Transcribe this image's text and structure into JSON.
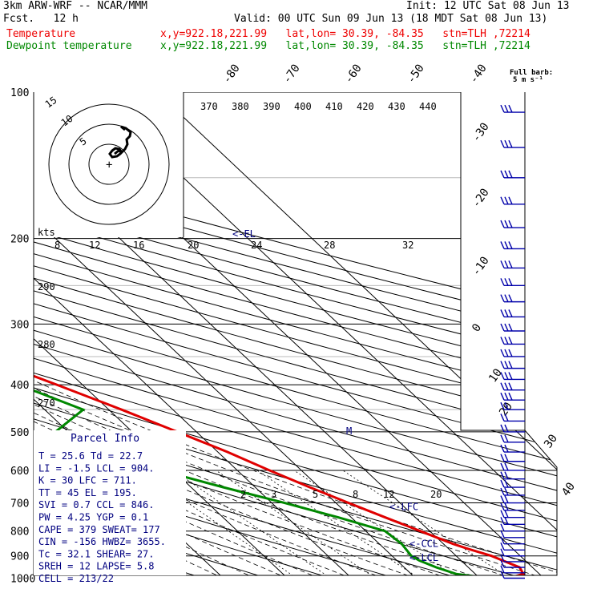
{
  "header": {
    "model": "3km ARW-WRF -- NCAR/MMM",
    "init": "Init: 12 UTC Sat 08 Jun 13",
    "fcst": "Fcst.   12 h",
    "valid": "Valid: 00 UTC Sun 09 Jun 13 (18 MDT Sat 08 Jun 13)",
    "temp_label": "Temperature",
    "temp_info": "x,y=922.18,221.99   lat,lon= 30.39, -84.35   stn=TLH ,72214",
    "dew_label": "Dewpoint temperature",
    "dew_info": "x,y=922.18,221.99   lat,lon= 30.39, -84.35   stn=TLH ,72214"
  },
  "colors": {
    "temperature": "#e00000",
    "dewpoint": "#008800",
    "wind": "#0000aa",
    "labels": "#000080"
  },
  "chart_data": {
    "type": "skew-t",
    "pressure_levels": [
      "100",
      "200",
      "300",
      "400",
      "500",
      "600",
      "700",
      "800",
      "900",
      "1000"
    ],
    "isotherm_labels": [
      "-80",
      "-70",
      "-60",
      "-50",
      "-40",
      "-30",
      "-20",
      "-10",
      "0",
      "10",
      "20",
      "30",
      "40"
    ],
    "theta_labels": [
      "370",
      "380",
      "390",
      "400",
      "410",
      "420",
      "430",
      "440"
    ],
    "dry_adiabat_labels": [
      "290",
      "280",
      "270"
    ],
    "mixing_ratio_labels": [
      "2",
      "3",
      "5",
      "8",
      "12",
      "20"
    ],
    "hodograph_speed_labels": [
      "8",
      "12",
      "16",
      "20",
      "24",
      "28",
      "32"
    ],
    "hodograph_unit": "kts",
    "hodograph_ring_labels": [
      "15",
      "10",
      "5"
    ],
    "wind_legend": "Full barb: 5 m s⁻¹",
    "levels": {
      "el": {
        "label": "<-EL",
        "p": 195
      },
      "lfc": {
        "label": "<-LFC",
        "p": 711
      },
      "ccl": {
        "label": "<-CCL",
        "p": 846
      },
      "lcl": {
        "label": "<-LCL",
        "p": 904
      }
    },
    "temperature": [
      [
        1000,
        24.5
      ],
      [
        980,
        27.5
      ],
      [
        950,
        28.0
      ],
      [
        920,
        26.5
      ],
      [
        900,
        25.5
      ],
      [
        870,
        23.0
      ],
      [
        850,
        21.5
      ],
      [
        800,
        18.5
      ],
      [
        750,
        15.3
      ],
      [
        700,
        12.0
      ],
      [
        650,
        8.5
      ],
      [
        600,
        5.0
      ],
      [
        550,
        1.5
      ],
      [
        500,
        -3.0
      ],
      [
        450,
        -8.0
      ],
      [
        400,
        -14.0
      ],
      [
        350,
        -21.0
      ],
      [
        300,
        -30.0
      ],
      [
        250,
        -40.5
      ],
      [
        200,
        -52.5
      ],
      [
        180,
        -56.5
      ],
      [
        160,
        -58.0
      ],
      [
        140,
        -59.0
      ],
      [
        120,
        -59.5
      ],
      [
        100,
        -60.0
      ]
    ],
    "dewpoint": [
      [
        1000,
        21.5
      ],
      [
        980,
        17.0
      ],
      [
        950,
        15.0
      ],
      [
        920,
        13.5
      ],
      [
        900,
        13.0
      ],
      [
        850,
        13.5
      ],
      [
        800,
        13.0
      ],
      [
        750,
        8.0
      ],
      [
        700,
        2.0
      ],
      [
        650,
        -5.0
      ],
      [
        600,
        -12.0
      ],
      [
        550,
        -18.0
      ],
      [
        500,
        -22.0
      ],
      [
        450,
        -14.0
      ],
      [
        400,
        -20.0
      ],
      [
        370,
        -20.0
      ],
      [
        350,
        -24.0
      ],
      [
        300,
        -34.0
      ],
      [
        250,
        -45.0
      ],
      [
        200,
        -54.0
      ],
      [
        180,
        -57.5
      ],
      [
        160,
        -64.0
      ],
      [
        140,
        -78.0
      ],
      [
        120,
        -82.0
      ],
      [
        100,
        -84.0
      ]
    ],
    "wind_pressures": [
      110,
      130,
      150,
      170,
      190,
      210,
      230,
      250,
      270,
      290,
      310,
      330,
      350,
      370,
      390,
      410,
      430,
      450,
      475,
      500,
      525,
      550,
      575,
      600,
      625,
      650,
      675,
      700,
      725,
      750,
      775,
      800,
      825,
      850,
      875,
      900,
      925,
      950,
      975,
      1000
    ],
    "parcel_info": {
      "title": "Parcel Info",
      "rows": [
        "T  =    25.6  Td =  22.7",
        "LI =    -1.5  LCL =  904.",
        "K  =     30   LFC =  711.",
        "TT =     45   EL  =  195.",
        "SVI =    0.7  CCL =  846.",
        "PW =    4.25  YGP =   0.1",
        "CAPE =   379  SWEAT=  177",
        "CIN =   -156  HWBZ= 3655.",
        "Tc =    32.1  SHEAR=  27.",
        "SREH =    12  LAPSE=  5.8",
        "CELL = 213/22"
      ]
    }
  }
}
